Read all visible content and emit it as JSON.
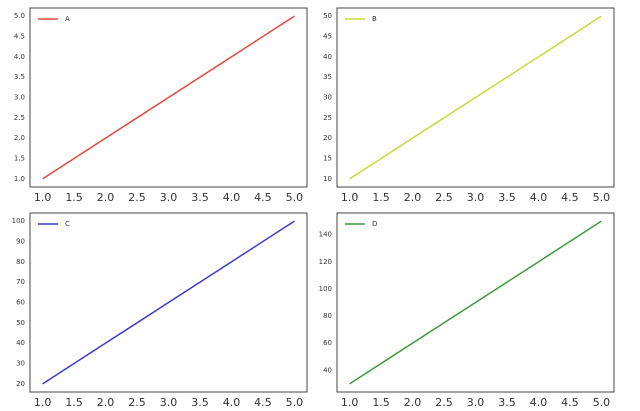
{
  "chart_data": [
    {
      "type": "line",
      "x": [
        1,
        2,
        3,
        4,
        5
      ],
      "series": [
        {
          "name": "A",
          "color": "#e0483e",
          "values": [
            1,
            2,
            3,
            4,
            5
          ]
        }
      ],
      "xlim": [
        0.8,
        5.2
      ],
      "ylim": [
        0.8,
        5.2
      ],
      "xticks": [
        {
          "value": 1,
          "label": "1.0"
        },
        1.5,
        {
          "value": 2,
          "label": "2.0"
        },
        2.5,
        {
          "value": 3,
          "label": "3.0"
        },
        3.5,
        {
          "value": 4,
          "label": "4.0"
        },
        4.5,
        {
          "value": 5,
          "label": "5.0"
        }
      ],
      "yticks": [
        {
          "value": 1,
          "label": "1.0"
        },
        1.5,
        {
          "value": 2,
          "label": "2.0"
        },
        2.5,
        {
          "value": 3,
          "label": "3.0"
        },
        3.5,
        {
          "value": 4,
          "label": "4.0"
        },
        4.5,
        {
          "value": 5,
          "label": "5.0"
        }
      ],
      "legend": "upper left"
    },
    {
      "type": "line",
      "x": [
        1,
        2,
        3,
        4,
        5
      ],
      "series": [
        {
          "name": "B",
          "color": "#c8da3a",
          "values": [
            10,
            20,
            30,
            40,
            50
          ]
        }
      ],
      "xlim": [
        0.8,
        5.2
      ],
      "ylim": [
        8,
        52
      ],
      "xticks": [
        {
          "value": 1,
          "label": "1.0"
        },
        1.5,
        {
          "value": 2,
          "label": "2.0"
        },
        2.5,
        {
          "value": 3,
          "label": "3.0"
        },
        3.5,
        {
          "value": 4,
          "label": "4.0"
        },
        4.5,
        {
          "value": 5,
          "label": "5.0"
        }
      ],
      "yticks": [
        10,
        15,
        20,
        25,
        30,
        35,
        40,
        45,
        50
      ],
      "legend": "upper left"
    },
    {
      "type": "line",
      "x": [
        1,
        2,
        3,
        4,
        5
      ],
      "series": [
        {
          "name": "C",
          "color": "#3b3bc8",
          "values": [
            20,
            40,
            60,
            80,
            100
          ]
        }
      ],
      "xlim": [
        0.8,
        5.2
      ],
      "ylim": [
        16,
        104
      ],
      "xticks": [
        {
          "value": 1,
          "label": "1.0"
        },
        1.5,
        {
          "value": 2,
          "label": "2.0"
        },
        2.5,
        {
          "value": 3,
          "label": "3.0"
        },
        3.5,
        {
          "value": 4,
          "label": "4.0"
        },
        4.5,
        {
          "value": 5,
          "label": "5.0"
        }
      ],
      "yticks": [
        20,
        30,
        40,
        50,
        60,
        70,
        80,
        90,
        100
      ],
      "legend": "upper left"
    },
    {
      "type": "line",
      "x": [
        1,
        2,
        3,
        4,
        5
      ],
      "series": [
        {
          "name": "D",
          "color": "#3c9a3c",
          "values": [
            30,
            60,
            90,
            120,
            150
          ]
        }
      ],
      "xlim": [
        0.8,
        5.2
      ],
      "ylim": [
        24,
        156
      ],
      "xticks": [
        {
          "value": 1,
          "label": "1.0"
        },
        1.5,
        {
          "value": 2,
          "label": "2.0"
        },
        2.5,
        {
          "value": 3,
          "label": "3.0"
        },
        3.5,
        {
          "value": 4,
          "label": "4.0"
        },
        4.5,
        {
          "value": 5,
          "label": "5.0"
        }
      ],
      "yticks": [
        40,
        60,
        80,
        100,
        120,
        140
      ],
      "legend": "upper left"
    }
  ]
}
